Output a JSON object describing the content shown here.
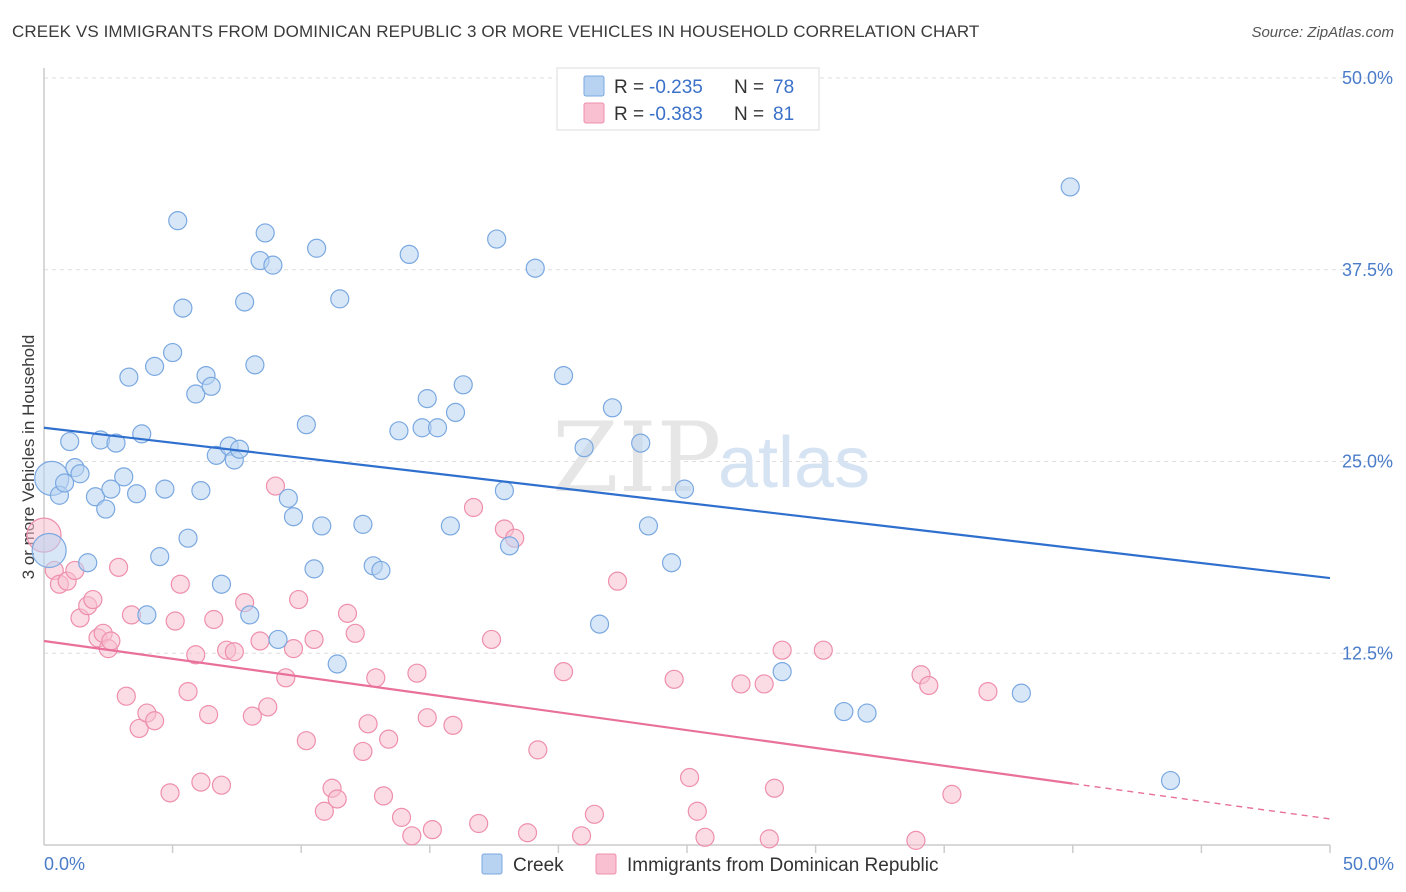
{
  "title": "CREEK VS IMMIGRANTS FROM DOMINICAN REPUBLIC 3 OR MORE VEHICLES IN HOUSEHOLD CORRELATION CHART",
  "source": "Source: ZipAtlas.com",
  "watermark": {
    "part1": "ZIP",
    "part2": "atlas"
  },
  "colors": {
    "creek_fill": "#b8d3f2",
    "creek_stroke": "#7aa8e0",
    "creek_line": "#2f6fce",
    "dom_fill": "#f8c0d0",
    "dom_stroke": "#ee8fac",
    "dom_line": "#e8709a",
    "grid": "#dddddd",
    "tick_label": "#4a7cc9"
  },
  "legend": {
    "rows": [
      {
        "r_label": "R = ",
        "r_value": "-0.235",
        "n_label": "N = ",
        "n_value": "78"
      },
      {
        "r_label": "R = ",
        "r_value": "-0.383",
        "n_label": "N = ",
        "n_value": "81"
      }
    ]
  },
  "bottom_legend": [
    "Creek",
    "Immigrants from Dominican Republic"
  ],
  "chart_data": {
    "type": "scatter",
    "xlabel": "",
    "ylabel": "3 or more Vehicles in Household",
    "xlim": [
      0,
      50
    ],
    "ylim": [
      0,
      50
    ],
    "x_tick_labels": [
      "0.0%",
      "50.0%"
    ],
    "y_ticks": [
      12.5,
      25.0,
      37.5,
      50.0
    ],
    "y_tick_labels": [
      "12.5%",
      "25.0%",
      "37.5%",
      "50.0%"
    ],
    "grid": "horizontal dashed",
    "legend_position": "top-center",
    "series": [
      {
        "name": "Creek",
        "r": -0.235,
        "n": 78,
        "trend": {
          "x": [
            0,
            50
          ],
          "y": [
            27.2,
            17.4
          ]
        },
        "points": [
          [
            0.2,
            19.2
          ],
          [
            0.3,
            23.9
          ],
          [
            0.6,
            22.8
          ],
          [
            0.8,
            23.6
          ],
          [
            1.0,
            26.3
          ],
          [
            1.2,
            24.6
          ],
          [
            1.4,
            24.2
          ],
          [
            1.7,
            18.4
          ],
          [
            2.0,
            22.7
          ],
          [
            2.2,
            26.4
          ],
          [
            2.4,
            21.9
          ],
          [
            2.6,
            23.2
          ],
          [
            2.8,
            26.2
          ],
          [
            3.1,
            24.0
          ],
          [
            3.3,
            30.5
          ],
          [
            3.6,
            22.9
          ],
          [
            3.8,
            26.8
          ],
          [
            4.0,
            15.0
          ],
          [
            4.3,
            31.2
          ],
          [
            4.5,
            18.8
          ],
          [
            4.7,
            23.2
          ],
          [
            5.0,
            32.1
          ],
          [
            5.2,
            40.7
          ],
          [
            5.4,
            35.0
          ],
          [
            5.6,
            20.0
          ],
          [
            5.9,
            29.4
          ],
          [
            6.1,
            23.1
          ],
          [
            6.3,
            30.6
          ],
          [
            6.5,
            29.9
          ],
          [
            6.7,
            25.4
          ],
          [
            6.9,
            17.0
          ],
          [
            7.2,
            26.0
          ],
          [
            7.4,
            25.1
          ],
          [
            7.6,
            25.8
          ],
          [
            7.8,
            35.4
          ],
          [
            8.0,
            15.0
          ],
          [
            8.2,
            31.3
          ],
          [
            8.4,
            38.1
          ],
          [
            8.6,
            39.9
          ],
          [
            8.9,
            37.8
          ],
          [
            9.1,
            13.4
          ],
          [
            9.5,
            22.6
          ],
          [
            9.7,
            21.4
          ],
          [
            10.2,
            27.4
          ],
          [
            10.5,
            18.0
          ],
          [
            10.6,
            38.9
          ],
          [
            10.8,
            20.8
          ],
          [
            11.5,
            35.6
          ],
          [
            11.4,
            11.8
          ],
          [
            12.4,
            20.9
          ],
          [
            12.8,
            18.2
          ],
          [
            13.1,
            17.9
          ],
          [
            13.8,
            27.0
          ],
          [
            14.2,
            38.5
          ],
          [
            14.7,
            27.2
          ],
          [
            14.9,
            29.1
          ],
          [
            15.3,
            27.2
          ],
          [
            15.8,
            20.8
          ],
          [
            16.0,
            28.2
          ],
          [
            16.3,
            30.0
          ],
          [
            17.6,
            39.5
          ],
          [
            17.9,
            23.1
          ],
          [
            18.1,
            19.5
          ],
          [
            19.1,
            37.6
          ],
          [
            20.2,
            30.6
          ],
          [
            21.0,
            25.9
          ],
          [
            21.6,
            14.4
          ],
          [
            22.1,
            28.5
          ],
          [
            23.2,
            26.2
          ],
          [
            23.5,
            20.8
          ],
          [
            24.4,
            18.4
          ],
          [
            24.9,
            23.2
          ],
          [
            28.7,
            11.3
          ],
          [
            31.1,
            8.7
          ],
          [
            32.0,
            8.6
          ],
          [
            38.0,
            9.9
          ],
          [
            39.9,
            42.9
          ],
          [
            43.8,
            4.2
          ]
        ]
      },
      {
        "name": "Immigrants from Dominican Republic",
        "r": -0.383,
        "n": 81,
        "trend": {
          "x": [
            0,
            40,
            50
          ],
          "y": [
            13.3,
            4.0,
            1.7
          ]
        },
        "points": [
          [
            0.0,
            20.2
          ],
          [
            0.4,
            17.9
          ],
          [
            0.6,
            17.0
          ],
          [
            0.9,
            17.2
          ],
          [
            1.2,
            17.9
          ],
          [
            1.4,
            14.8
          ],
          [
            1.7,
            15.6
          ],
          [
            1.9,
            16.0
          ],
          [
            2.1,
            13.5
          ],
          [
            2.3,
            13.8
          ],
          [
            2.5,
            12.8
          ],
          [
            2.6,
            13.3
          ],
          [
            2.9,
            18.1
          ],
          [
            3.2,
            9.7
          ],
          [
            3.4,
            15.0
          ],
          [
            3.7,
            7.6
          ],
          [
            4.0,
            8.6
          ],
          [
            4.3,
            8.1
          ],
          [
            4.9,
            3.4
          ],
          [
            5.1,
            14.6
          ],
          [
            5.3,
            17.0
          ],
          [
            5.6,
            10.0
          ],
          [
            5.9,
            12.4
          ],
          [
            6.1,
            4.1
          ],
          [
            6.4,
            8.5
          ],
          [
            6.6,
            14.7
          ],
          [
            6.9,
            3.9
          ],
          [
            7.1,
            12.7
          ],
          [
            7.4,
            12.6
          ],
          [
            7.8,
            15.8
          ],
          [
            8.1,
            8.4
          ],
          [
            8.4,
            13.3
          ],
          [
            8.7,
            9.0
          ],
          [
            9.0,
            23.4
          ],
          [
            9.4,
            10.9
          ],
          [
            9.7,
            12.8
          ],
          [
            9.9,
            16.0
          ],
          [
            10.2,
            6.8
          ],
          [
            10.5,
            13.4
          ],
          [
            10.9,
            2.2
          ],
          [
            11.2,
            3.7
          ],
          [
            11.4,
            3.0
          ],
          [
            11.8,
            15.1
          ],
          [
            12.1,
            13.8
          ],
          [
            12.4,
            6.1
          ],
          [
            12.6,
            7.9
          ],
          [
            12.9,
            10.9
          ],
          [
            13.2,
            3.2
          ],
          [
            13.4,
            6.9
          ],
          [
            13.9,
            1.8
          ],
          [
            14.3,
            0.6
          ],
          [
            14.5,
            11.2
          ],
          [
            14.9,
            8.3
          ],
          [
            15.1,
            1.0
          ],
          [
            15.9,
            7.8
          ],
          [
            16.7,
            22.0
          ],
          [
            16.9,
            1.4
          ],
          [
            17.4,
            13.4
          ],
          [
            17.9,
            20.6
          ],
          [
            18.3,
            20.0
          ],
          [
            18.8,
            0.8
          ],
          [
            19.2,
            6.2
          ],
          [
            20.2,
            11.3
          ],
          [
            20.9,
            0.6
          ],
          [
            21.4,
            2.0
          ],
          [
            22.3,
            17.2
          ],
          [
            24.5,
            10.8
          ],
          [
            25.1,
            4.4
          ],
          [
            25.4,
            2.2
          ],
          [
            25.7,
            0.5
          ],
          [
            27.1,
            10.5
          ],
          [
            28.0,
            10.5
          ],
          [
            28.2,
            0.4
          ],
          [
            28.4,
            3.7
          ],
          [
            28.7,
            12.7
          ],
          [
            30.3,
            12.7
          ],
          [
            33.9,
            0.3
          ],
          [
            34.1,
            11.1
          ],
          [
            34.4,
            10.4
          ],
          [
            35.3,
            3.3
          ],
          [
            36.7,
            10.0
          ]
        ]
      }
    ]
  }
}
